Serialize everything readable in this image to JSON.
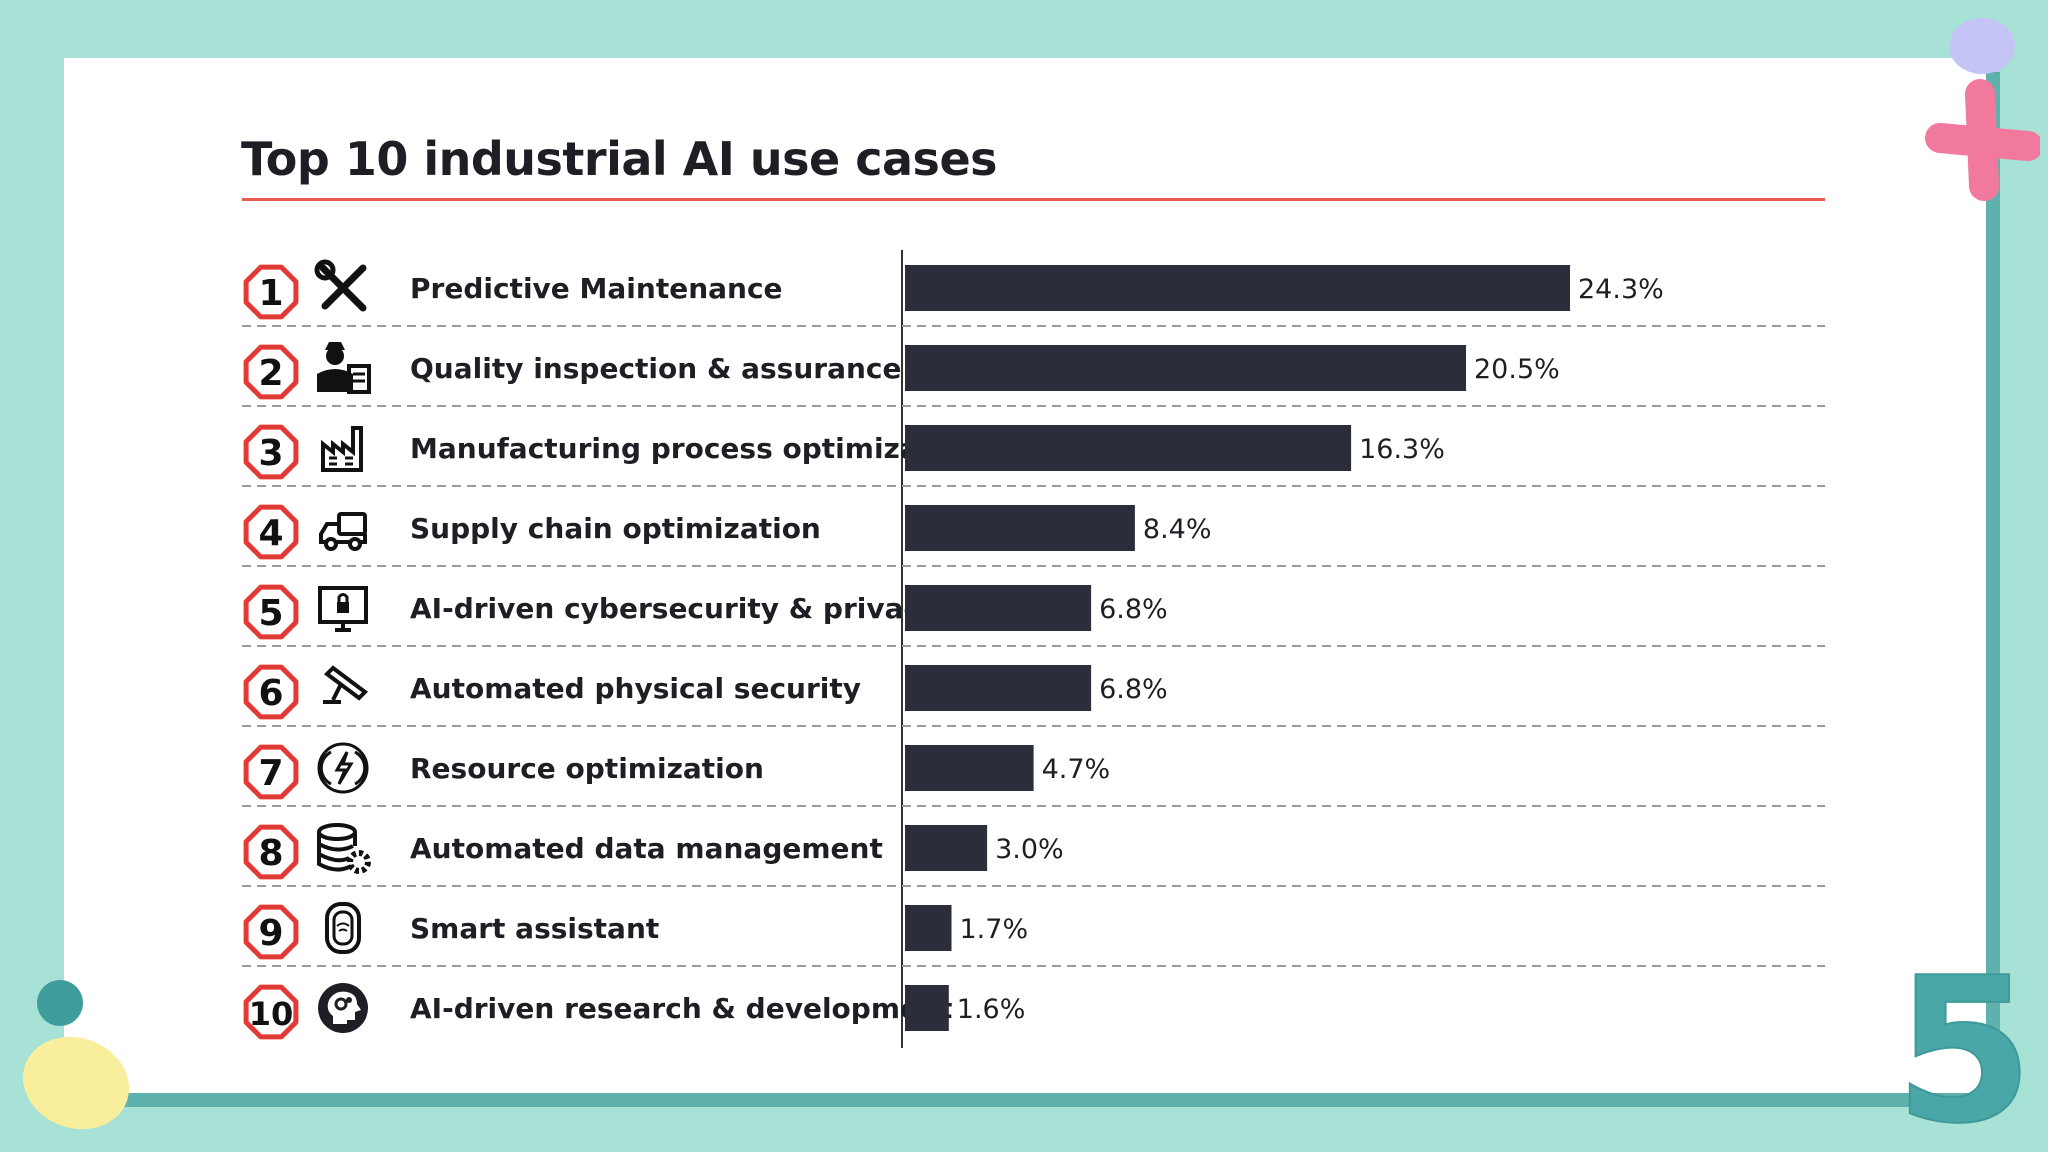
{
  "title": "Top 10 industrial AI use cases",
  "slide_number": "5",
  "colors": {
    "background": "#a8e2d6",
    "bar": "#2b2d3b",
    "accent_line": "#e85a4f",
    "badge_border": "#e53935",
    "slide_number": "#4aa7a8"
  },
  "chart_data": {
    "type": "bar",
    "orientation": "horizontal",
    "title": "Top 10 industrial AI use cases",
    "categories": [
      "Predictive Maintenance",
      "Quality inspection & assurance",
      "Manufacturing process optimization",
      "Supply chain optimization",
      "AI-driven cybersecurity & privacy",
      "Automated physical security",
      "Resource optimization",
      "Automated data management",
      "Smart assistant",
      "AI-driven research & development"
    ],
    "values": [
      24.3,
      20.5,
      16.3,
      8.4,
      6.8,
      6.8,
      4.7,
      3.0,
      1.7,
      1.6
    ],
    "value_labels": [
      "24.3%",
      "20.5%",
      "16.3%",
      "8.4%",
      "6.8%",
      "6.8%",
      "4.7%",
      "3.0%",
      "1.7%",
      "1.6%"
    ],
    "ranks": [
      "1",
      "2",
      "3",
      "4",
      "5",
      "6",
      "7",
      "8",
      "9",
      "10"
    ],
    "icons": [
      "tools-icon",
      "inspector-icon",
      "factory-icon",
      "truck-icon",
      "monitor-lock-icon",
      "security-camera-icon",
      "energy-icon",
      "database-gear-icon",
      "smart-speaker-icon",
      "brain-gears-icon"
    ],
    "xlim": [
      0,
      24.3
    ],
    "xlabel": "",
    "ylabel": "",
    "grid": "dashed row separators"
  }
}
